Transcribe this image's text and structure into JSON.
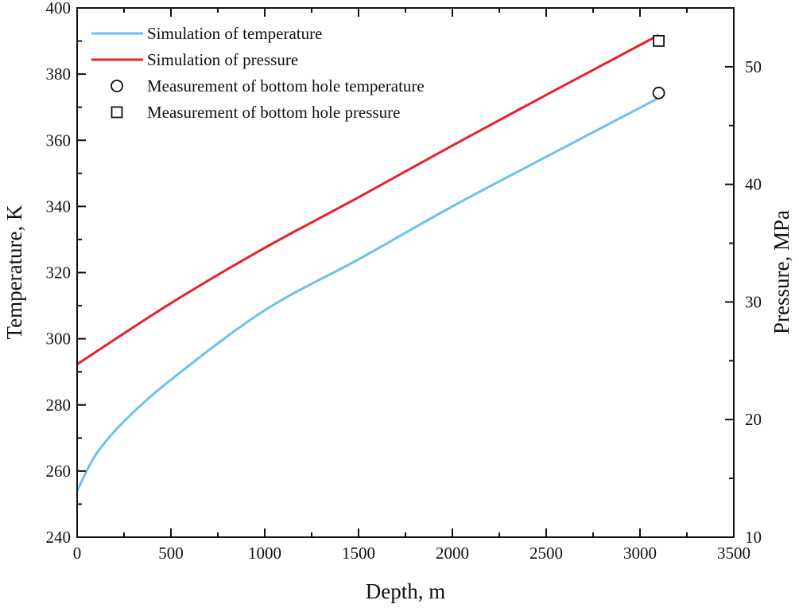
{
  "chart_data": {
    "type": "line",
    "title": "",
    "xlabel": "Depth, m",
    "ylabel": "Temperature, K",
    "y2label": "Pressure, MPa",
    "xlim": [
      0,
      3500
    ],
    "ylim": [
      240,
      400
    ],
    "y2lim": [
      10,
      55
    ],
    "xticks": [
      0,
      500,
      1000,
      1500,
      2000,
      2500,
      3000,
      3500
    ],
    "yticks": [
      240,
      260,
      280,
      300,
      320,
      340,
      360,
      380,
      400
    ],
    "y2ticks": [
      10,
      20,
      30,
      40,
      50
    ],
    "grid": false,
    "legend_position": "top-left",
    "series": [
      {
        "name": "Simulation of temperature",
        "kind": "line",
        "axis": "left",
        "color": "#6ec1ea",
        "x": [
          0,
          100,
          250,
          500,
          1000,
          1500,
          2000,
          2500,
          3100
        ],
        "y": [
          254,
          265,
          275,
          287.6,
          308.6,
          324,
          340,
          355,
          372.8
        ]
      },
      {
        "name": "Simulation of pressure",
        "kind": "line",
        "axis": "right",
        "color": "#e8212a",
        "x": [
          0,
          500,
          1000,
          1500,
          2000,
          2500,
          3100
        ],
        "y": [
          24.7,
          29.9,
          34.6,
          38.9,
          43.3,
          47.6,
          52.7
        ]
      },
      {
        "name": "Measurement of bottom hole temperature",
        "kind": "marker",
        "marker": "circle",
        "axis": "left",
        "color": "#111111",
        "x": [
          3100
        ],
        "y": [
          374.3
        ]
      },
      {
        "name": "Measurement of bottom hole pressure",
        "kind": "marker",
        "marker": "square",
        "axis": "right",
        "color": "#111111",
        "x": [
          3100
        ],
        "y": [
          52.2
        ]
      }
    ]
  }
}
